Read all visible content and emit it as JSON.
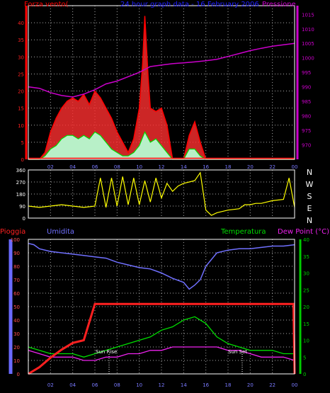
{
  "colors": {
    "wind": "#ff0000",
    "gust_band": "#ff3030",
    "wind_avg": "#00dd00",
    "wind_fill": "#b8f0c8",
    "pressure": "#cc00cc",
    "direction": "#ffff00",
    "rain": "#ff2020",
    "humidity": "#7070ff",
    "temperature": "#00dd00",
    "dewpoint": "#ee22ee",
    "grid": "#aaaaaa",
    "frame": "#ffffff"
  },
  "top_panel": {
    "title": "24 hour graph data - 16 February 2006",
    "left_label": "Forza vento(",
    "right_label": "Pressione"
  },
  "dir_panel": {
    "compass": [
      "N",
      "W",
      "S",
      "E",
      "N"
    ]
  },
  "bottom_panel": {
    "left_label": "Pioggia",
    "humidity_label": "Umidita",
    "temp_label": "Temperatura",
    "dew_label": "Dew Point (°C)",
    "sunrise_label": "Sun Rise",
    "sunset_label": "Sun Set"
  },
  "chart_data": [
    {
      "type": "line",
      "title": "24 hour graph data - 16 February 2006",
      "x_ticks": [
        "02",
        "04",
        "06",
        "08",
        "10",
        "12",
        "14",
        "16",
        "18",
        "20",
        "22",
        "00"
      ],
      "xlim": [
        0,
        24
      ],
      "y_left": {
        "label": "Forza vento(",
        "lim": [
          0,
          45
        ],
        "ticks": [
          0,
          5,
          10,
          15,
          20,
          25,
          30,
          35,
          40
        ]
      },
      "y_right": {
        "label": "Pressione",
        "lim": [
          965,
          1018
        ],
        "ticks": [
          970,
          975,
          980,
          985,
          990,
          995,
          1000,
          1005,
          1010,
          1015
        ]
      },
      "series": [
        {
          "name": "Pressione",
          "axis": "right",
          "x": [
            0,
            1,
            2,
            3,
            4,
            5,
            6,
            7,
            8,
            9,
            10,
            10.5,
            11,
            12,
            13,
            14,
            15,
            16,
            17,
            18,
            19,
            20,
            21,
            22,
            23,
            24
          ],
          "y": [
            990,
            989.5,
            988,
            987,
            986.5,
            987.5,
            989,
            991,
            992,
            993.5,
            995,
            996,
            997,
            997.5,
            998,
            998.3,
            998.6,
            999,
            999.5,
            1000.5,
            1001.5,
            1002.5,
            1003.3,
            1004,
            1004.5,
            1005
          ]
        },
        {
          "name": "Forza vento(",
          "axis": "left",
          "x": [
            0,
            1,
            1.5,
            2,
            2.5,
            3,
            3.5,
            4,
            4.5,
            5,
            5.5,
            6,
            6.5,
            7,
            7.5,
            8,
            8.5,
            9,
            9.5,
            10,
            10.3,
            10.5,
            10.8,
            11,
            11.5,
            12,
            12.5,
            13,
            13.5,
            14,
            14.5,
            15,
            15.5,
            16,
            17,
            18,
            19,
            20,
            21,
            22,
            23,
            24
          ],
          "y": [
            0,
            0,
            2,
            8,
            12,
            15,
            17,
            18,
            17,
            19,
            16,
            20,
            18,
            15,
            12,
            8,
            5,
            2,
            6,
            15,
            28,
            42,
            24,
            15,
            14,
            15,
            10,
            0,
            0,
            0,
            7,
            11,
            5,
            0,
            0,
            0,
            0,
            0,
            0,
            0,
            0,
            0
          ]
        },
        {
          "name": "avg",
          "axis": "left",
          "x": [
            0,
            1,
            1.5,
            2,
            2.5,
            3,
            3.5,
            4,
            4.5,
            5,
            5.5,
            6,
            6.5,
            7,
            7.5,
            8,
            8.5,
            9,
            9.5,
            10,
            10.5,
            11,
            11.5,
            12,
            12.5,
            13,
            14,
            14.5,
            15,
            15.5,
            16,
            24
          ],
          "y": [
            0,
            0,
            1,
            3,
            4,
            6,
            7,
            7,
            6,
            7,
            6,
            8,
            7,
            5,
            3,
            2,
            1,
            1,
            2,
            4,
            8,
            5,
            6,
            4,
            2,
            0,
            0,
            3,
            3,
            1,
            0,
            0
          ]
        }
      ]
    },
    {
      "type": "line",
      "title": "",
      "xlim": [
        0,
        24
      ],
      "y_left": {
        "lim": [
          0,
          360
        ],
        "ticks": [
          0,
          90,
          180,
          270,
          360
        ]
      },
      "series": [
        {
          "name": "direction",
          "x": [
            0,
            1,
            2,
            3,
            4,
            5,
            6,
            6.5,
            7,
            7.5,
            8,
            8.5,
            9,
            9.5,
            10,
            10.5,
            11,
            11.5,
            12,
            12.5,
            13,
            13.5,
            14,
            14.5,
            15,
            15.5,
            16,
            16.5,
            17,
            18,
            19,
            19.5,
            20,
            20.5,
            21,
            22,
            23,
            23.5,
            24
          ],
          "y": [
            90,
            80,
            90,
            100,
            90,
            80,
            90,
            300,
            80,
            300,
            90,
            310,
            100,
            300,
            100,
            280,
            120,
            300,
            150,
            260,
            200,
            240,
            260,
            270,
            280,
            340,
            60,
            20,
            40,
            60,
            70,
            100,
            100,
            110,
            110,
            130,
            140,
            300,
            80
          ]
        }
      ]
    },
    {
      "type": "line",
      "title": "",
      "x_ticks": [
        "02",
        "04",
        "06",
        "08",
        "10",
        "12",
        "14",
        "16",
        "18",
        "20",
        "22",
        "00"
      ],
      "xlim": [
        0,
        24
      ],
      "y_left": {
        "label": "Pioggia",
        "lim": [
          0,
          100
        ],
        "ticks": [
          0,
          10,
          20,
          30,
          40,
          50,
          60,
          70,
          80,
          90,
          100
        ]
      },
      "y_right": {
        "label": "Dew Point (°C)",
        "lim": [
          0,
          40
        ],
        "ticks": [
          0,
          5,
          10,
          15,
          20,
          25,
          30,
          35,
          40
        ]
      },
      "series": [
        {
          "name": "Pioggia",
          "axis": "left",
          "x": [
            0,
            1,
            2,
            3,
            4,
            5,
            6,
            6.5,
            7,
            8,
            9,
            10,
            11,
            12,
            13,
            14,
            15,
            16,
            17,
            18,
            19,
            20,
            21,
            22,
            23,
            23.9,
            24
          ],
          "y": [
            0,
            5,
            12,
            18,
            23,
            25,
            52,
            52,
            52,
            52,
            52,
            52,
            52,
            52,
            52,
            52,
            52,
            52,
            52,
            52,
            52,
            52,
            52,
            52,
            52,
            52,
            0
          ]
        },
        {
          "name": "Umidita",
          "axis": "left",
          "x": [
            0,
            0.5,
            1,
            2,
            3,
            4,
            5,
            6,
            7,
            8,
            9,
            10,
            11,
            12,
            13,
            14,
            14.5,
            15,
            15.5,
            16,
            17,
            18,
            19,
            20,
            21,
            22,
            23,
            24
          ],
          "y": [
            97,
            96,
            93,
            91,
            90,
            89,
            88,
            87,
            86,
            83,
            81,
            79,
            78,
            75,
            71,
            68,
            63,
            66,
            70,
            80,
            90,
            92,
            93,
            93,
            94,
            95,
            95,
            96
          ]
        },
        {
          "name": "Temperatura",
          "axis": "right",
          "x": [
            0,
            1,
            2,
            3,
            4,
            5,
            6,
            7,
            8,
            9,
            10,
            11,
            12,
            13,
            14,
            15,
            16,
            17,
            18,
            19,
            20,
            21,
            22,
            23,
            24
          ],
          "y": [
            8,
            7,
            6,
            6,
            6,
            5,
            6,
            7,
            8,
            9,
            10,
            11,
            13,
            14,
            16,
            17,
            15,
            11,
            9,
            8,
            7,
            7,
            7,
            6,
            6
          ]
        },
        {
          "name": "Dew Point (°C)",
          "axis": "right",
          "x": [
            0,
            1,
            2,
            3,
            4,
            5,
            6,
            7,
            8,
            9,
            10,
            11,
            12,
            13,
            14,
            15,
            16,
            17,
            18,
            19,
            20,
            21,
            22,
            23,
            24
          ],
          "y": [
            7,
            6,
            5,
            5,
            5,
            4,
            4,
            5,
            5,
            6,
            6,
            7,
            7,
            8,
            8,
            8,
            8,
            8,
            7,
            7,
            6,
            5,
            5,
            5,
            4
          ]
        }
      ]
    }
  ]
}
